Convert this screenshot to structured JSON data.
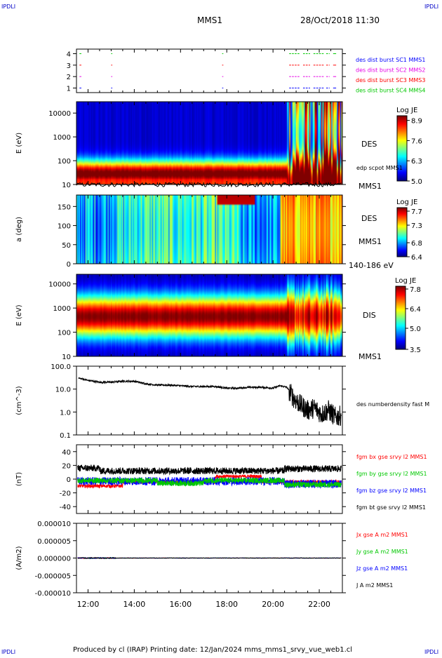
{
  "corner_label": "IPDLI",
  "header": {
    "title": "MMS1",
    "datetime": "28/Oct/2018 11:30"
  },
  "footer": {
    "text": "Produced by cl (IRAP)   Printing date: 12/Jan/2024   mms_mms1_srvy_vue_web1.cl"
  },
  "time_axis": {
    "range_hours": [
      11.5,
      23.0
    ],
    "ticks": [
      "12:00",
      "14:00",
      "16:00",
      "18:00",
      "20:00",
      "22:00"
    ],
    "tick_hours": [
      12,
      14,
      16,
      18,
      20,
      22
    ]
  },
  "colors": {
    "black": "#000000",
    "red": "#ff0000",
    "green": "#00c800",
    "blue": "#0000ff",
    "magenta": "#e600e6",
    "dark_blue": "#0000c8"
  },
  "chart_data": [
    {
      "type": "scatter",
      "name": "burst availability",
      "yticks": [
        "1",
        "2",
        "3",
        "4"
      ],
      "ylim": [
        0.6,
        4.4
      ],
      "series": [
        {
          "name": "des dist burst SC1 MMS1",
          "color": "#0000ff",
          "y": 1
        },
        {
          "name": "des dist burst SC2 MMS2",
          "color": "#e600e6",
          "y": 2
        },
        {
          "name": "des dist burst SC3 MMS3",
          "color": "#ff0000",
          "y": 3
        },
        {
          "name": "des dist burst SC4 MMS4",
          "color": "#00c800",
          "y": 4
        }
      ],
      "segments_hours": [
        [
          11.63,
          11.68
        ],
        [
          13.0,
          13.02
        ],
        [
          17.8,
          17.82
        ],
        [
          20.7,
          21.15
        ],
        [
          21.3,
          21.6
        ],
        [
          21.75,
          22.2
        ],
        [
          22.3,
          22.45
        ],
        [
          22.6,
          22.7
        ]
      ]
    },
    {
      "type": "heatmap",
      "ylabel": "E (eV)",
      "yscale": "log",
      "ylim": [
        10,
        30000
      ],
      "yticks": [
        "10",
        "100",
        "1000",
        "10000"
      ],
      "right_label": "DES",
      "annotation": "edp scpot MMS1",
      "bottom_label": "MMS1",
      "colorbar": {
        "title": "Log JE",
        "min": 5.0,
        "max": 9.2,
        "ticks": [
          "8.9",
          "7.6",
          "6.3",
          "5.0"
        ]
      }
    },
    {
      "type": "heatmap",
      "ylabel": "a (deg)",
      "ylim": [
        0,
        180
      ],
      "yticks": [
        "0",
        "50",
        "100",
        "150"
      ],
      "right_label": "DES",
      "right_label_2": "MMS1",
      "bottom_label": "140-186 eV",
      "colorbar": {
        "title": "Log JE",
        "min": 6.4,
        "max": 7.8,
        "ticks": [
          "7.7",
          "7.3",
          "6.8",
          "6.4"
        ]
      }
    },
    {
      "type": "heatmap",
      "ylabel": "E (eV)",
      "yscale": "log",
      "ylim": [
        10,
        25000
      ],
      "yticks": [
        "10",
        "100",
        "1000",
        "10000"
      ],
      "right_label": "DIS",
      "bottom_label": "MMS1",
      "colorbar": {
        "title": "Log JE",
        "min": 3.5,
        "max": 8.0,
        "ticks": [
          "7.8",
          "6.4",
          "5.0",
          "3.5"
        ]
      }
    },
    {
      "type": "line",
      "ylabel": "(cm^-3)",
      "yscale": "log",
      "ylim": [
        0.1,
        100
      ],
      "yticks": [
        "0.1",
        "1.0",
        "10.0",
        "100.0"
      ],
      "series": [
        {
          "name": "des numberdensity fast M",
          "color": "#000000",
          "x": [
            11.6,
            12.0,
            12.5,
            13.0,
            13.5,
            14.0,
            14.5,
            15.0,
            15.5,
            16.0,
            16.5,
            17.0,
            17.5,
            18.0,
            18.5,
            19.0,
            19.5,
            20.0,
            20.3,
            20.6,
            20.9,
            21.2,
            21.5,
            21.8,
            22.1,
            22.4,
            22.7,
            22.95
          ],
          "y": [
            30,
            24,
            20,
            20,
            22,
            22,
            17,
            15,
            15,
            14,
            13,
            13,
            13,
            11,
            11,
            12,
            12,
            11,
            14,
            12,
            4,
            2,
            1.2,
            1.5,
            0.8,
            1.2,
            0.6,
            0.7
          ]
        }
      ]
    },
    {
      "type": "line",
      "ylabel": "(nT)",
      "ylim": [
        -50,
        50
      ],
      "yticks": [
        "-40",
        "-20",
        "0",
        "20",
        "40"
      ],
      "series": [
        {
          "name": "fgm bx gse srvy l2 MMS1",
          "color": "#ff0000"
        },
        {
          "name": "fgm by gse srvy l2 MMS1",
          "color": "#00c800"
        },
        {
          "name": "fgm bz gse srvy l2 MMS1",
          "color": "#0000ff"
        },
        {
          "name": "fgm bt gse srvy l2 MMS1",
          "color": "#000000"
        }
      ]
    },
    {
      "type": "line",
      "ylabel": "(A/m2)",
      "ylim": [
        -1e-05,
        1e-05
      ],
      "yticks": [
        "0.000010",
        "0.000005",
        "0.000000",
        "-0.000005",
        "-0.000010"
      ],
      "series": [
        {
          "name": "Jx gse A m2 MMS1",
          "color": "#ff0000"
        },
        {
          "name": "Jy gse A m2 MMS1",
          "color": "#00c800"
        },
        {
          "name": "Jz gse A m2 MMS1",
          "color": "#0000ff"
        },
        {
          "name": "J A m2 MMS1",
          "color": "#000000"
        }
      ]
    }
  ]
}
